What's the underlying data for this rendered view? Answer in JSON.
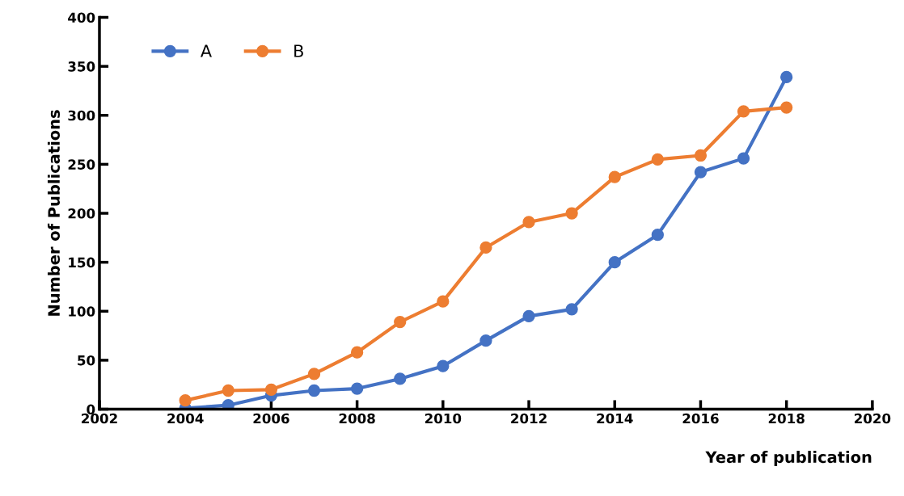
{
  "chart_data": {
    "type": "line",
    "xlabel": "Year of publication",
    "ylabel": "Number of Publications",
    "x": [
      2004,
      2005,
      2006,
      2007,
      2008,
      2009,
      2010,
      2011,
      2012,
      2013,
      2014,
      2015,
      2016,
      2017,
      2018
    ],
    "series": [
      {
        "name": "A",
        "color": "#4472c4",
        "values": [
          1,
          4,
          14,
          19,
          21,
          31,
          44,
          70,
          95,
          102,
          150,
          178,
          242,
          256,
          339
        ]
      },
      {
        "name": "B",
        "color": "#ed7d31",
        "values": [
          9,
          19,
          20,
          36,
          58,
          89,
          110,
          165,
          191,
          200,
          237,
          255,
          259,
          304,
          308
        ]
      }
    ],
    "xlim": [
      2002,
      2020
    ],
    "xticks": [
      2002,
      2004,
      2006,
      2008,
      2010,
      2012,
      2014,
      2016,
      2018,
      2020
    ],
    "ylim": [
      0,
      400
    ],
    "yticks": [
      0,
      50,
      100,
      150,
      200,
      250,
      300,
      350,
      400
    ],
    "grid": false,
    "legend": "top left",
    "marker": "circle",
    "line_style": "solid"
  }
}
